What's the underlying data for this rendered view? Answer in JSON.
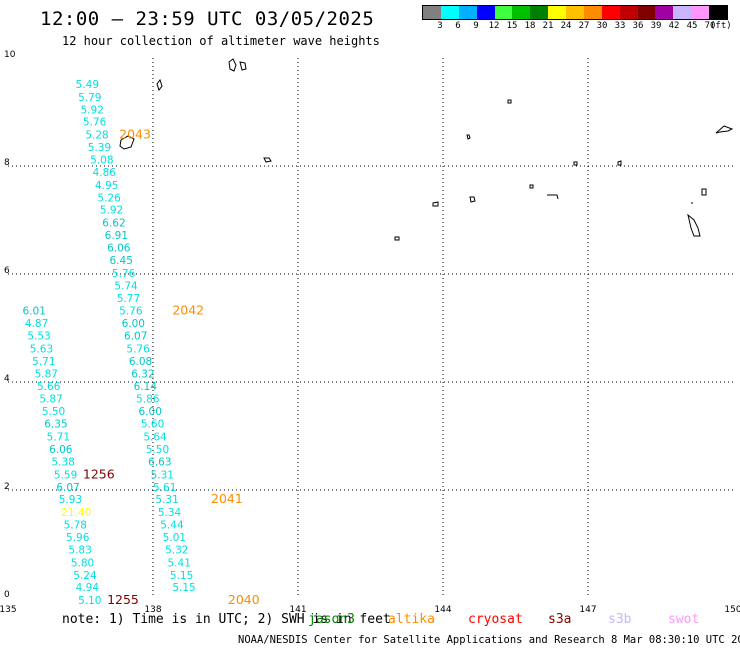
{
  "header": {
    "title": "12:00 – 23:59 UTC 03/05/2025",
    "subtitle": "12 hour collection of altimeter wave heights"
  },
  "legend": {
    "colors": [
      "#808080",
      "#00ffff",
      "#00b0ff",
      "#0000ff",
      "#40ff40",
      "#00c000",
      "#008000",
      "#ffff00",
      "#ffc000",
      "#ff8c00",
      "#ff0000",
      "#c00000",
      "#800000",
      "#a000a0",
      "#c8b4ff",
      "#ff96ff",
      "#000000"
    ],
    "labels": [
      "3",
      "6",
      "9",
      "12",
      "15",
      "18",
      "21",
      "24",
      "27",
      "30",
      "33",
      "36",
      "39",
      "42",
      "45",
      "70"
    ],
    "unit": "(ft)"
  },
  "note": "note: 1) Time is in UTC; 2) SWH is in feet",
  "satellites": [
    {
      "name": "jason3",
      "color": "#008000"
    },
    {
      "name": "altika",
      "color": "#ff8c00"
    },
    {
      "name": "cryosat",
      "color": "#ff0000"
    },
    {
      "name": "s3a",
      "color": "#800000"
    },
    {
      "name": "s3b",
      "color": "#c8b4ff"
    },
    {
      "name": "swot",
      "color": "#ff96ff"
    }
  ],
  "footer": "NOAA/NESDIS Center for Satellite Applications and Research    8 Mar 08:30:10 UTC 2025",
  "chart_data": {
    "type": "scatter",
    "title": "12:00 – 23:59 UTC 03/05/2025",
    "subtitle": "12 hour collection of altimeter wave heights",
    "xlim": [
      135,
      150
    ],
    "ylim": [
      0,
      10
    ],
    "x_ticks": [
      "135",
      "138",
      "141",
      "144",
      "147",
      "150"
    ],
    "y_ticks": [
      "0",
      "2",
      "4",
      "6",
      "8",
      "10"
    ],
    "grid": true,
    "series": [
      {
        "name": "altika",
        "color_key": "altika",
        "points": [
          {
            "x": 136.4,
            "y": 9.52,
            "v": "5.49"
          },
          {
            "x": 136.45,
            "y": 9.28,
            "v": "5.79"
          },
          {
            "x": 136.5,
            "y": 9.05,
            "v": "5.92"
          },
          {
            "x": 136.55,
            "y": 8.82,
            "v": "5.76"
          },
          {
            "x": 136.6,
            "y": 8.58,
            "v": "5.28"
          },
          {
            "x": 136.65,
            "y": 8.35,
            "v": "5.39"
          },
          {
            "x": 136.7,
            "y": 8.12,
            "v": "5.08"
          },
          {
            "x": 136.75,
            "y": 7.89,
            "v": "4.86"
          },
          {
            "x": 136.8,
            "y": 7.65,
            "v": "4.95"
          },
          {
            "x": 136.85,
            "y": 7.42,
            "v": "5.26"
          },
          {
            "x": 136.9,
            "y": 7.19,
            "v": "5.92"
          },
          {
            "x": 136.95,
            "y": 6.95,
            "v": "6.62"
          },
          {
            "x": 137.0,
            "y": 6.72,
            "v": "6.91"
          },
          {
            "x": 137.05,
            "y": 6.49,
            "v": "6.06"
          },
          {
            "x": 137.1,
            "y": 6.26,
            "v": "6.45"
          },
          {
            "x": 137.15,
            "y": 6.02,
            "v": "5.76"
          },
          {
            "x": 137.2,
            "y": 5.79,
            "v": "5.74"
          },
          {
            "x": 137.25,
            "y": 5.56,
            "v": "5.77"
          },
          {
            "x": 137.3,
            "y": 5.32,
            "v": "5.76"
          },
          {
            "x": 137.35,
            "y": 5.09,
            "v": "6.00"
          },
          {
            "x": 137.4,
            "y": 4.86,
            "v": "6.07"
          },
          {
            "x": 137.45,
            "y": 4.62,
            "v": "5.76"
          },
          {
            "x": 137.5,
            "y": 4.39,
            "v": "6.08"
          },
          {
            "x": 137.55,
            "y": 4.16,
            "v": "6.32"
          },
          {
            "x": 137.6,
            "y": 3.93,
            "v": "6.14"
          },
          {
            "x": 137.65,
            "y": 3.69,
            "v": "5.86"
          },
          {
            "x": 137.7,
            "y": 3.46,
            "v": "6.00"
          },
          {
            "x": 137.75,
            "y": 3.23,
            "v": "5.60"
          },
          {
            "x": 137.8,
            "y": 2.99,
            "v": "5.64"
          },
          {
            "x": 137.85,
            "y": 2.76,
            "v": "5.50"
          },
          {
            "x": 137.9,
            "y": 2.53,
            "v": "6.63"
          },
          {
            "x": 137.95,
            "y": 2.29,
            "v": "5.31"
          },
          {
            "x": 138.0,
            "y": 2.06,
            "v": "5.61"
          },
          {
            "x": 138.05,
            "y": 1.83,
            "v": "5.31"
          },
          {
            "x": 138.1,
            "y": 1.59,
            "v": "5.34"
          },
          {
            "x": 138.15,
            "y": 1.36,
            "v": "5.44"
          },
          {
            "x": 138.2,
            "y": 1.13,
            "v": "5.01"
          },
          {
            "x": 138.25,
            "y": 0.9,
            "v": "5.32"
          },
          {
            "x": 138.3,
            "y": 0.66,
            "v": "5.41"
          },
          {
            "x": 138.35,
            "y": 0.43,
            "v": "5.15"
          },
          {
            "x": 138.4,
            "y": 0.2,
            "v": "5.15"
          }
        ]
      },
      {
        "name": "s3a",
        "color_key": "s3a",
        "points": [
          {
            "x": 135.3,
            "y": 5.32,
            "v": "6.01"
          },
          {
            "x": 135.35,
            "y": 5.09,
            "v": "4.87"
          },
          {
            "x": 135.4,
            "y": 4.86,
            "v": "5.53"
          },
          {
            "x": 135.45,
            "y": 4.62,
            "v": "5.63"
          },
          {
            "x": 135.5,
            "y": 4.39,
            "v": "5.71"
          },
          {
            "x": 135.55,
            "y": 4.16,
            "v": "5.87"
          },
          {
            "x": 135.6,
            "y": 3.93,
            "v": "5.66"
          },
          {
            "x": 135.65,
            "y": 3.69,
            "v": "5.87"
          },
          {
            "x": 135.7,
            "y": 3.46,
            "v": "5.50"
          },
          {
            "x": 135.75,
            "y": 3.23,
            "v": "6.35"
          },
          {
            "x": 135.8,
            "y": 2.99,
            "v": "5.71"
          },
          {
            "x": 135.85,
            "y": 2.76,
            "v": "6.06"
          },
          {
            "x": 135.9,
            "y": 2.53,
            "v": "5.38"
          },
          {
            "x": 135.95,
            "y": 2.29,
            "v": "5.59"
          },
          {
            "x": 136.0,
            "y": 2.06,
            "v": "6.07"
          },
          {
            "x": 136.05,
            "y": 1.83,
            "v": "5.93"
          },
          {
            "x": 136.1,
            "y": 1.59,
            "v": "21.40"
          },
          {
            "x": 136.15,
            "y": 1.36,
            "v": "5.78"
          },
          {
            "x": 136.2,
            "y": 1.13,
            "v": "5.96"
          },
          {
            "x": 136.25,
            "y": 0.9,
            "v": "5.83"
          },
          {
            "x": 136.3,
            "y": 0.66,
            "v": "5.80"
          },
          {
            "x": 136.35,
            "y": 0.43,
            "v": "5.24"
          },
          {
            "x": 136.4,
            "y": 0.2,
            "v": "4.94"
          },
          {
            "x": 136.45,
            "y": -0.04,
            "v": "5.10"
          }
        ]
      }
    ],
    "pass_labels": [
      {
        "text": "2043",
        "x": 137.3,
        "y": 8.58,
        "sat": "altika"
      },
      {
        "text": "2042",
        "x": 138.4,
        "y": 5.32,
        "sat": "altika"
      },
      {
        "text": "2041",
        "x": 139.2,
        "y": 1.83,
        "sat": "altika"
      },
      {
        "text": "2040",
        "x": 139.55,
        "y": -0.04,
        "sat": "altika"
      },
      {
        "text": "1256",
        "x": 136.55,
        "y": 2.29,
        "sat": "s3a"
      },
      {
        "text": "1255",
        "x": 137.05,
        "y": -0.04,
        "sat": "s3a"
      }
    ]
  }
}
